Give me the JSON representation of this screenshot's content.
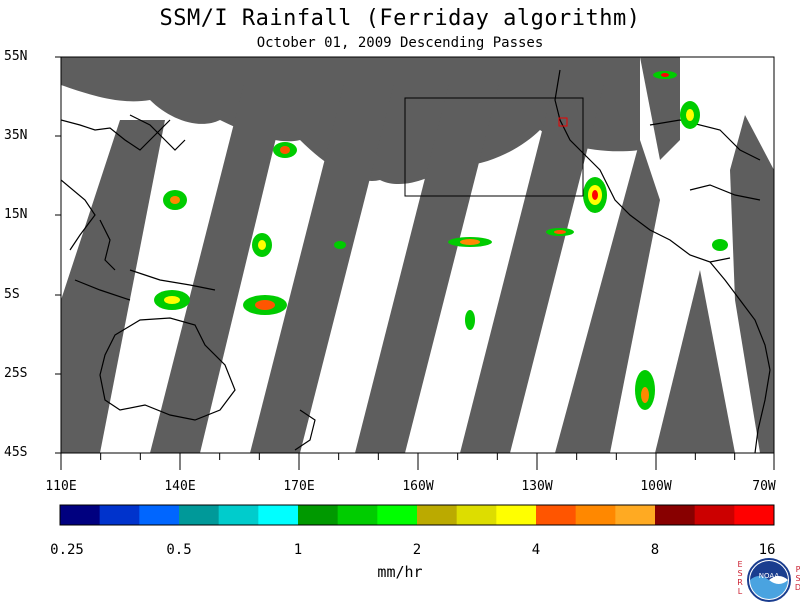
{
  "title": "SSM/I Rainfall (Ferriday algorithm)",
  "subtitle": "October 01, 2009  Descending Passes",
  "lat_labels": [
    "55N",
    "35N",
    "15N",
    "5S",
    "25S",
    "45S"
  ],
  "lon_labels": [
    "110E",
    "140E",
    "170E",
    "160W",
    "130W",
    "100W",
    "70W"
  ],
  "colorbar": {
    "colors": [
      "#00007f",
      "#0033cc",
      "#0066ff",
      "#009999",
      "#00cccc",
      "#00ffff",
      "#009900",
      "#00cc00",
      "#00ff00",
      "#bbaa00",
      "#dddd00",
      "#ffff00",
      "#ff5500",
      "#ff8800",
      "#ffaa22",
      "#880000",
      "#cc0000",
      "#ff0000"
    ],
    "tick_labels": [
      "0.25",
      "0.5",
      "1",
      "2",
      "4",
      "8",
      "16"
    ],
    "units": "mm/hr"
  },
  "logo": {
    "left_text": "ESRL",
    "center_text": "NOAA",
    "right_text": "PSD"
  }
}
